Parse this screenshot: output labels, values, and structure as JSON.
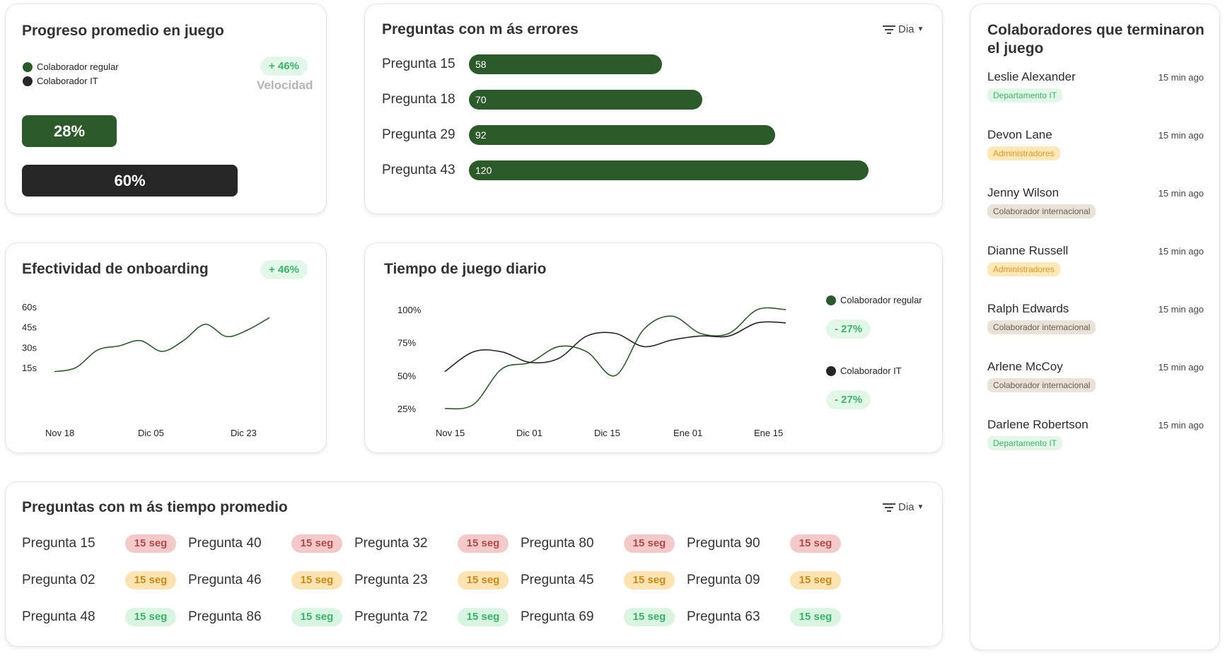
{
  "progress_card": {
    "title": "Progreso promedio en juego",
    "legend": [
      "Colaborador regular",
      "Colaborador IT"
    ],
    "badge": "+ 46%",
    "badge_caption": "Velocidad",
    "regular_value": "28%",
    "it_value": "60%",
    "colors": {
      "regular": "#2d5a2b",
      "it": "#262626"
    }
  },
  "errors_card": {
    "title": "Preguntas con m ás errores",
    "filter_label": "Dia",
    "chart_data": {
      "type": "bar",
      "orientation": "horizontal",
      "categories": [
        "Pregunta 15",
        "Pregunta 18",
        "Pregunta 29",
        "Pregunta 43"
      ],
      "values": [
        58,
        70,
        92,
        120
      ],
      "value_labels": [
        "58",
        "70",
        "92",
        "120"
      ]
    }
  },
  "collaborators_card": {
    "title": "Colaboradores que terminaron el juego",
    "people": [
      {
        "name": "Leslie Alexander",
        "time": "15 min ago",
        "tag": "Departamento IT",
        "tag_type": "it"
      },
      {
        "name": "Devon Lane",
        "time": "15 min ago",
        "tag": "Administradores",
        "tag_type": "admin"
      },
      {
        "name": "Jenny Wilson",
        "time": "15 min ago",
        "tag": "Colaborador internacional",
        "tag_type": "intl"
      },
      {
        "name": "Dianne Russell",
        "time": "15 min ago",
        "tag": "Administradores",
        "tag_type": "admin"
      },
      {
        "name": "Ralph Edwards",
        "time": "15 min ago",
        "tag": "Colaborador internacional",
        "tag_type": "intl"
      },
      {
        "name": "Arlene McCoy",
        "time": "15 min ago",
        "tag": "Colaborador internacional",
        "tag_type": "intl"
      },
      {
        "name": "Darlene Robertson",
        "time": "15 min ago",
        "tag": "Departamento IT",
        "tag_type": "it"
      }
    ]
  },
  "onboarding_card": {
    "title": "Efectividad de onboarding",
    "badge": "+ 46%",
    "chart_data": {
      "type": "line",
      "y_ticks": [
        "60s",
        "45s",
        "30s",
        "15s"
      ],
      "x_ticks": [
        "Nov 18",
        "Dic 05",
        "Dic 23"
      ],
      "ylim": [
        15,
        60
      ],
      "x": [
        "Nov 18",
        "Nov 22",
        "Nov 26",
        "Nov 30",
        "Dic 03",
        "Dic 06",
        "Dic 09",
        "Dic 13",
        "Dic 17",
        "Dic 20",
        "Dic 24"
      ],
      "values": [
        12,
        15,
        28,
        31,
        35,
        27,
        35,
        47,
        38,
        43,
        52
      ]
    }
  },
  "daily_time_card": {
    "title": "Tiempo de juego diario",
    "chart_data": {
      "type": "line",
      "y_ticks": [
        "100%",
        "75%",
        "50%",
        "25%"
      ],
      "x_ticks": [
        "Nov 15",
        "Dic 01",
        "Dic 15",
        "Ene 01",
        "Ene 15"
      ],
      "ylim": [
        25,
        100
      ],
      "x": [
        "Nov 15",
        "Nov 20",
        "Nov 25",
        "Dic 01",
        "Dic 06",
        "Dic 10",
        "Dic 15",
        "Dic 20",
        "Dic 25",
        "Ene 01",
        "Ene 06",
        "Ene 10",
        "Ene 15"
      ],
      "series": [
        {
          "name": "Colaborador regular",
          "color": "#2d5a2b",
          "values": [
            25,
            28,
            55,
            60,
            72,
            68,
            50,
            85,
            95,
            82,
            82,
            100,
            100
          ]
        },
        {
          "name": "Colaborador IT",
          "color": "#262626",
          "values": [
            53,
            68,
            68,
            60,
            63,
            80,
            82,
            72,
            77,
            80,
            80,
            90,
            90
          ]
        }
      ]
    },
    "legend": [
      {
        "name": "Colaborador regular",
        "badge": "- 27%"
      },
      {
        "name": "Colaborador IT",
        "badge": "- 27%"
      }
    ]
  },
  "time_card": {
    "title": "Preguntas con m ás tiempo promedio",
    "filter_label": "Dia",
    "rows": [
      [
        {
          "label": "Pregunta 15",
          "value": "15 seg",
          "level": "red"
        },
        {
          "label": "Pregunta 40",
          "value": "15 seg",
          "level": "red"
        },
        {
          "label": "Pregunta 32",
          "value": "15 seg",
          "level": "red"
        },
        {
          "label": "Pregunta 80",
          "value": "15 seg",
          "level": "red"
        },
        {
          "label": "Pregunta 90",
          "value": "15 seg",
          "level": "red"
        }
      ],
      [
        {
          "label": "Pregunta 02",
          "value": "15 seg",
          "level": "yellow"
        },
        {
          "label": "Pregunta 46",
          "value": "15 seg",
          "level": "yellow"
        },
        {
          "label": "Pregunta 23",
          "value": "15 seg",
          "level": "yellow"
        },
        {
          "label": "Pregunta 45",
          "value": "15 seg",
          "level": "yellow"
        },
        {
          "label": "Pregunta 09",
          "value": "15 seg",
          "level": "yellow"
        }
      ],
      [
        {
          "label": "Pregunta 48",
          "value": "15 seg",
          "level": "green"
        },
        {
          "label": "Pregunta 86",
          "value": "15 seg",
          "level": "green"
        },
        {
          "label": "Pregunta 72",
          "value": "15 seg",
          "level": "green"
        },
        {
          "label": "Pregunta 69",
          "value": "15 seg",
          "level": "green"
        },
        {
          "label": "Pregunta 63",
          "value": "15 seg",
          "level": "green"
        }
      ]
    ]
  }
}
